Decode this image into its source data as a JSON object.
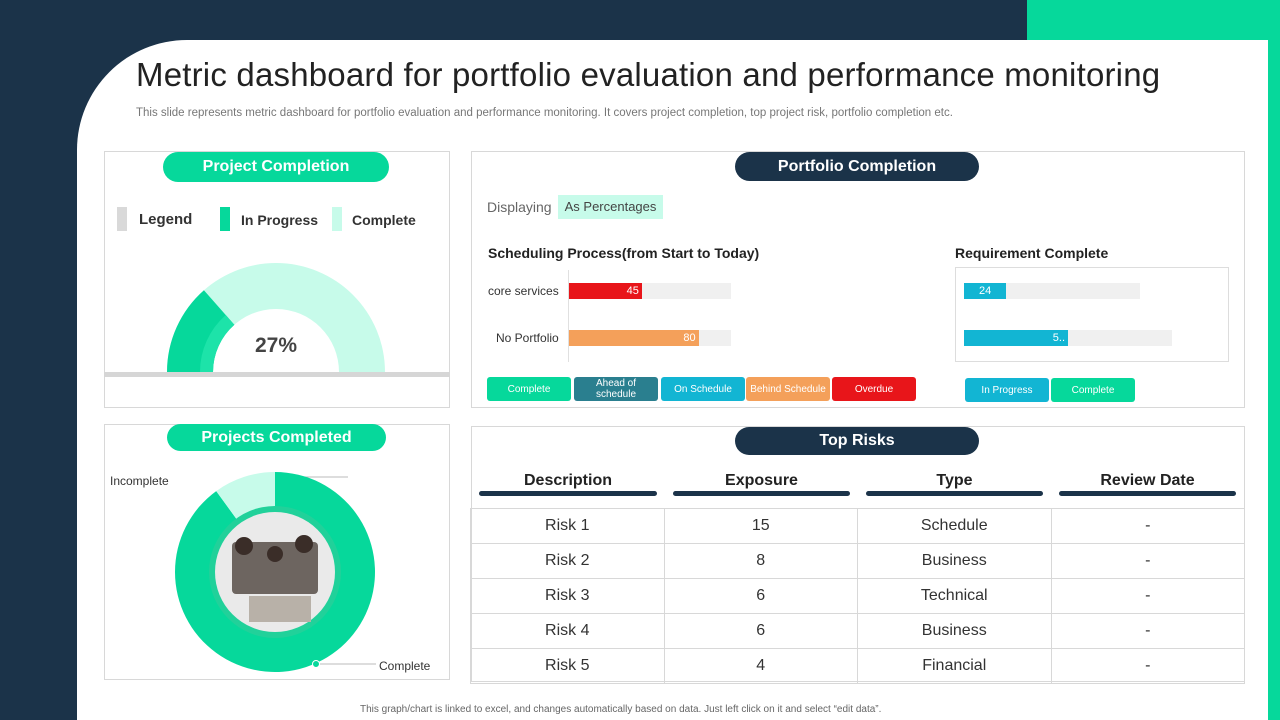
{
  "header": {
    "title": "Metric dashboard for portfolio evaluation and performance monitoring",
    "subtitle": "This slide represents metric dashboard for portfolio evaluation and performance monitoring. It covers project completion, top project risk, portfolio completion etc."
  },
  "footer_note": "This graph/chart is linked to excel, and changes automatically based on data. Just left click on it and select “edit data”.",
  "colors": {
    "navy": "#1b3349",
    "green": "#06d89b",
    "mint": "#c7fbea",
    "red": "#e8151a",
    "orange": "#f4a05a",
    "teal": "#2a7f8f",
    "cyan": "#12b5d3"
  },
  "project_completion": {
    "title": "Project Completion",
    "legend_label": "Legend",
    "legend_items": [
      "In Progress",
      "Complete"
    ],
    "percent_label": "27%",
    "percent_value": 27
  },
  "projects_completed": {
    "title": "Projects Completed",
    "incomplete_label": "Incomplete",
    "complete_label": "Complete",
    "complete_fraction": 0.9
  },
  "portfolio_completion": {
    "title": "Portfolio Completion",
    "displaying_label": "Displaying",
    "displaying_value": "As Percentages",
    "scheduling": {
      "title": "Scheduling Process(from Start to Today)",
      "rows": [
        {
          "label": "core services",
          "value": "45",
          "fraction": 0.45
        },
        {
          "label": "No Portfolio",
          "value": "80",
          "fraction": 0.8
        }
      ],
      "statuses": [
        "Complete",
        "Ahead of schedule",
        "On Schedule",
        "Behind Schedule",
        "Overdue"
      ]
    },
    "requirement": {
      "title": "Requirement Complete",
      "rows": [
        {
          "value": "24",
          "fraction": 0.24
        },
        {
          "value": "5..",
          "fraction": 0.5
        }
      ],
      "statuses": [
        "In Progress",
        "Complete"
      ]
    }
  },
  "top_risks": {
    "title": "Top Risks",
    "columns": [
      "Description",
      "Exposure",
      "Type",
      "Review Date"
    ],
    "rows": [
      [
        "Risk 1",
        "15",
        "Schedule",
        "-"
      ],
      [
        "Risk 2",
        "8",
        "Business",
        "-"
      ],
      [
        "Risk 3",
        "6",
        "Technical",
        "-"
      ],
      [
        "Risk 4",
        "6",
        "Business",
        "-"
      ],
      [
        "Risk 5",
        "4",
        "Financial",
        "-"
      ]
    ]
  }
}
